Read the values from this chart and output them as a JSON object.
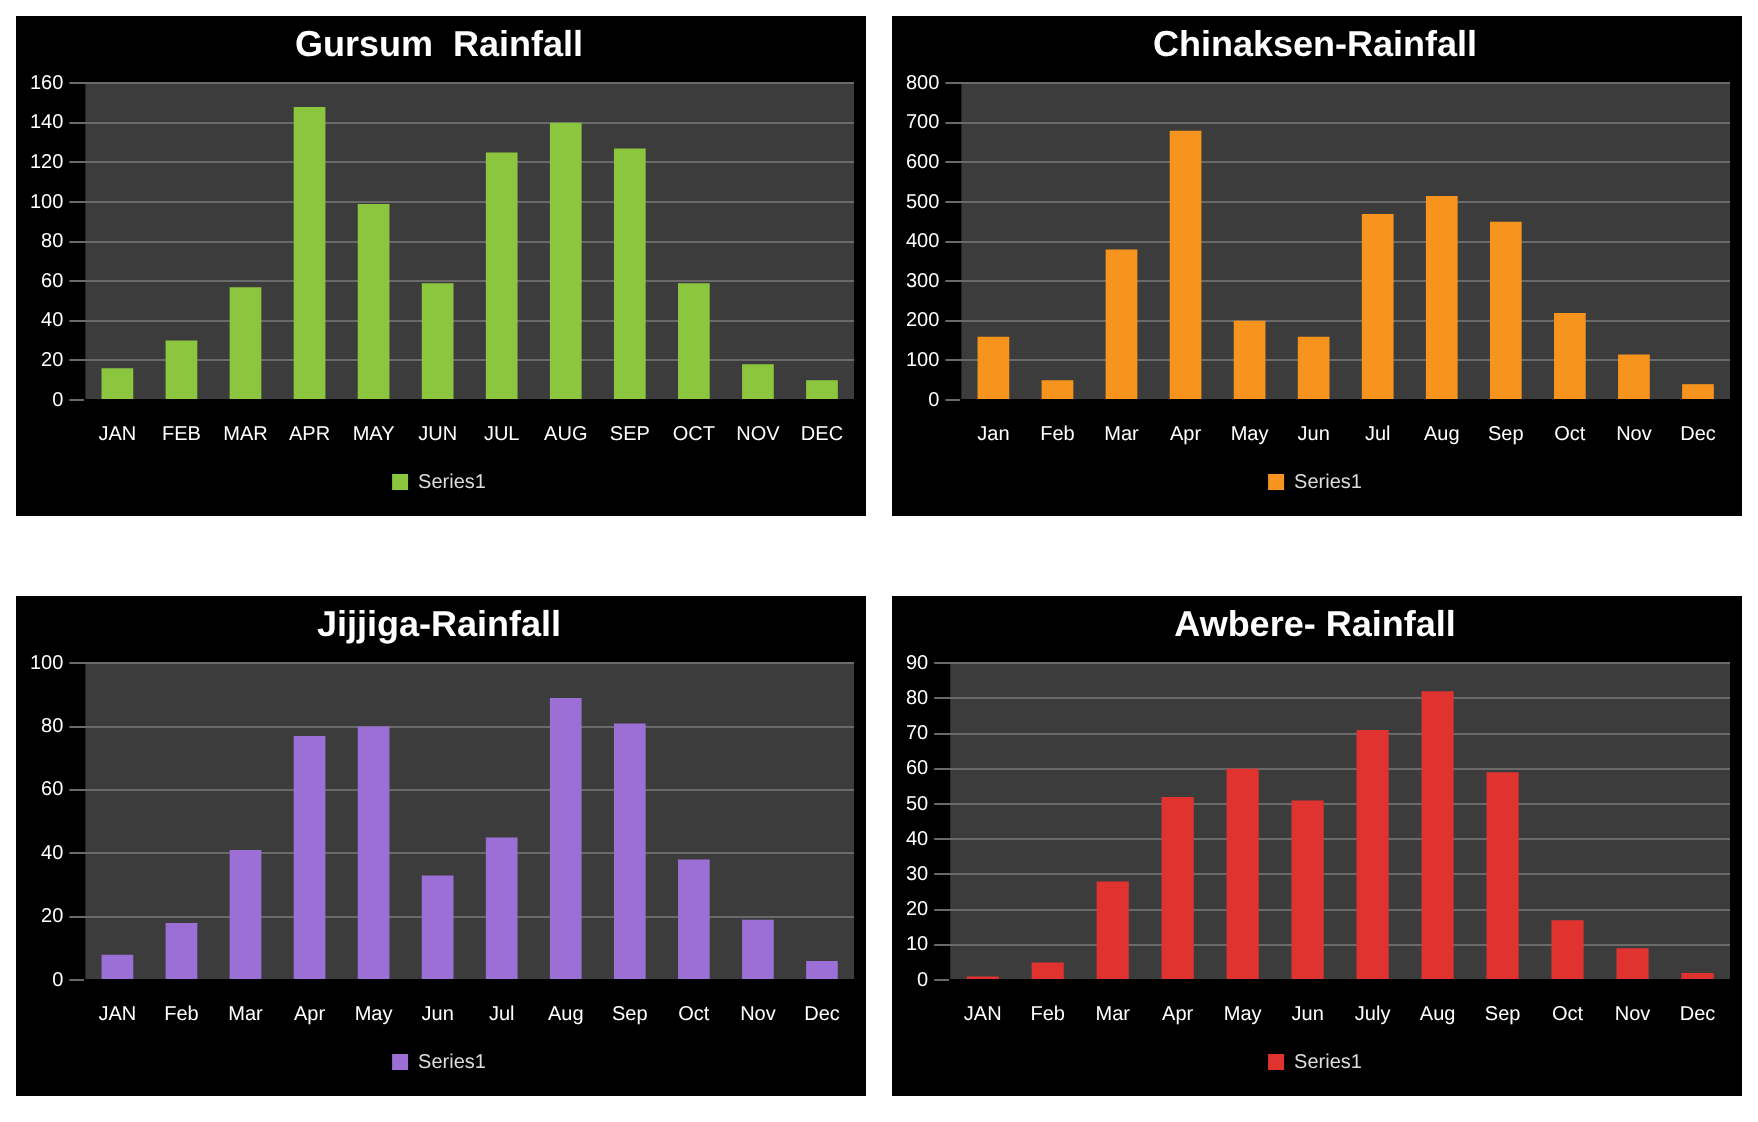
{
  "chart_data": [
    {
      "type": "bar",
      "title": "Gursum  Rainfall",
      "categories": [
        "JAN",
        "FEB",
        "MAR",
        "APR",
        "MAY",
        "JUN",
        "JUL",
        "AUG",
        "SEP",
        "OCT",
        "NOV",
        "DEC"
      ],
      "series": [
        {
          "name": "Series1",
          "color": "#8cc63f",
          "values": [
            16,
            30,
            57,
            148,
            99,
            59,
            125,
            140,
            127,
            59,
            18,
            10
          ]
        }
      ],
      "ylim": [
        0,
        160
      ],
      "yticks": [
        0,
        20,
        40,
        60,
        80,
        100,
        120,
        140,
        160
      ],
      "grid": "y",
      "legend": "bottom"
    },
    {
      "type": "bar",
      "title": "Chinaksen-Rainfall",
      "categories": [
        "Jan",
        "Feb",
        "Mar",
        "Apr",
        "May",
        "Jun",
        "Jul",
        "Aug",
        "Sep",
        "Oct",
        "Nov",
        "Dec"
      ],
      "series": [
        {
          "name": "Series1",
          "color": "#f7941d",
          "values": [
            160,
            50,
            380,
            680,
            200,
            160,
            470,
            515,
            450,
            220,
            115,
            40
          ]
        }
      ],
      "ylim": [
        0,
        800
      ],
      "yticks": [
        0,
        100,
        200,
        300,
        400,
        500,
        600,
        700,
        800
      ],
      "grid": "y",
      "legend": "bottom"
    },
    {
      "type": "bar",
      "title": "Jijjiga-Rainfall",
      "categories": [
        "JAN",
        "Feb",
        "Mar",
        "Apr",
        "May",
        "Jun",
        "Jul",
        "Aug",
        "Sep",
        "Oct",
        "Nov",
        "Dec"
      ],
      "series": [
        {
          "name": "Series1",
          "color": "#9b6fd6",
          "values": [
            8,
            18,
            41,
            77,
            80,
            33,
            45,
            89,
            81,
            38,
            19,
            6
          ]
        }
      ],
      "ylim": [
        0,
        100
      ],
      "yticks": [
        0,
        20,
        40,
        60,
        80,
        100
      ],
      "grid": "y",
      "legend": "bottom"
    },
    {
      "type": "bar",
      "title": "Awbere- Rainfall",
      "categories": [
        "JAN",
        "Feb",
        "Mar",
        "Apr",
        "May",
        "Jun",
        "July",
        "Aug",
        "Sep",
        "Oct",
        "Nov",
        "Dec"
      ],
      "series": [
        {
          "name": "Series1",
          "color": "#e0332f",
          "values": [
            1,
            5,
            28,
            52,
            60,
            51,
            71,
            82,
            59,
            17,
            9,
            2
          ]
        }
      ],
      "ylim": [
        0,
        90
      ],
      "yticks": [
        0,
        10,
        20,
        30,
        40,
        50,
        60,
        70,
        80,
        90
      ],
      "grid": "y",
      "legend": "bottom"
    }
  ]
}
